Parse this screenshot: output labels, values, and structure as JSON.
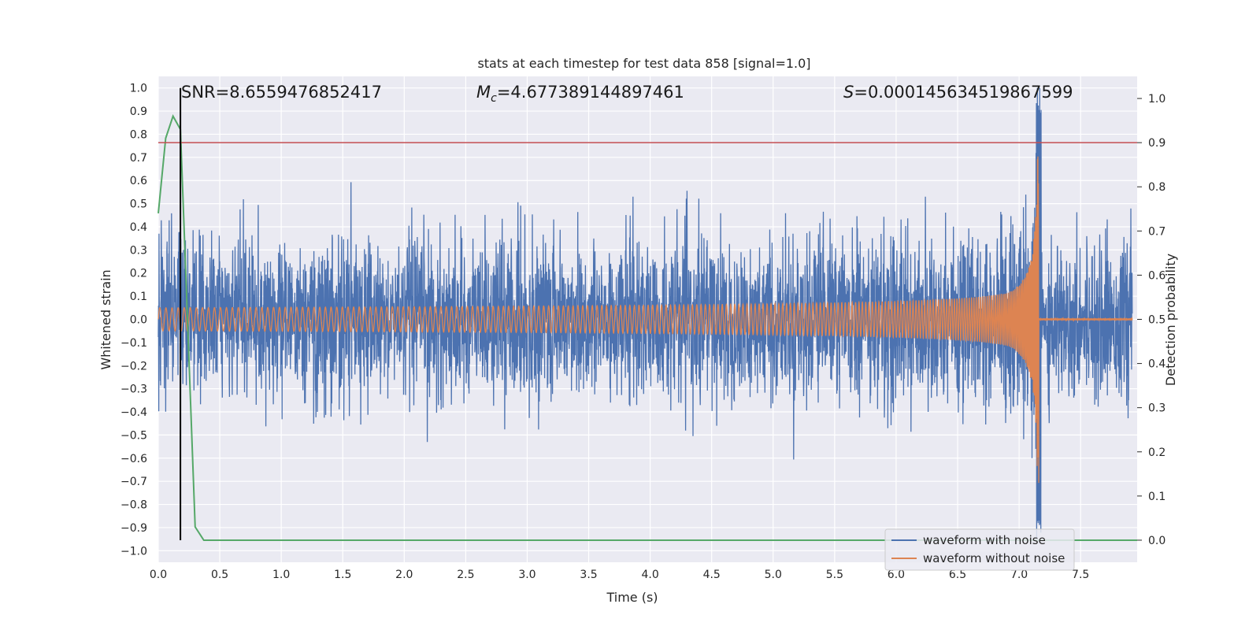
{
  "chart_data": {
    "type": "line",
    "title": "stats at each timestep for test data 858 [signal=1.0]",
    "xlabel": "Time (s)",
    "ylabel": "Whitened strain",
    "ylabel_right": "Detection probability",
    "xlim": [
      0.0,
      7.96
    ],
    "ylim": [
      -1.05,
      1.05
    ],
    "ylim_right": [
      -0.05,
      1.05
    ],
    "x_ticks": [
      "0.0",
      "0.5",
      "1.0",
      "1.5",
      "2.0",
      "2.5",
      "3.0",
      "3.5",
      "4.0",
      "4.5",
      "5.0",
      "5.5",
      "6.0",
      "6.5",
      "7.0",
      "7.5"
    ],
    "y_ticks": [
      "1.0",
      "0.9",
      "0.8",
      "0.7",
      "0.6",
      "0.5",
      "0.4",
      "0.3",
      "0.2",
      "0.1",
      "0.0",
      "−0.1",
      "−0.2",
      "−0.3",
      "−0.4",
      "−0.5",
      "−0.6",
      "−0.7",
      "−0.8",
      "−0.9",
      "−1.0"
    ],
    "y_ticks_right": [
      "1.0",
      "0.9",
      "0.8",
      "0.7",
      "0.6",
      "0.5",
      "0.4",
      "0.3",
      "0.2",
      "0.1",
      "0.0"
    ],
    "annotations": {
      "snr": "SNR=8.6559476852417",
      "mc_symbol": "M",
      "mc_sub": "c",
      "mc_value": "=4.677389144897461",
      "s_symbol": "S",
      "s_value": "=0.000145634519867599"
    },
    "series": [
      {
        "name": "waveform with noise",
        "color": "#4c72b0",
        "noise_std": 0.16,
        "envelope_base": 0.05,
        "merger_time": 7.16
      },
      {
        "name": "waveform without noise",
        "color": "#dd8452",
        "amplitude_start": 0.05,
        "peak_amplitude": 0.73,
        "merger_time": 7.16
      },
      {
        "name": "detection probability",
        "color": "#55a868",
        "axis": "right",
        "x": [
          0.0,
          0.06,
          0.12,
          0.18,
          0.24,
          0.3,
          0.37,
          7.96
        ],
        "y": [
          0.74,
          0.91,
          0.96,
          0.93,
          0.48,
          0.03,
          0.0,
          0.0
        ]
      }
    ],
    "threshold": {
      "value": 0.9,
      "axis": "right",
      "color": "#c44e52"
    },
    "marker_time": {
      "value": 0.18,
      "color": "#000000"
    },
    "legend": {
      "position": "lower-right",
      "entries": [
        "waveform with noise",
        "waveform without noise"
      ]
    }
  }
}
